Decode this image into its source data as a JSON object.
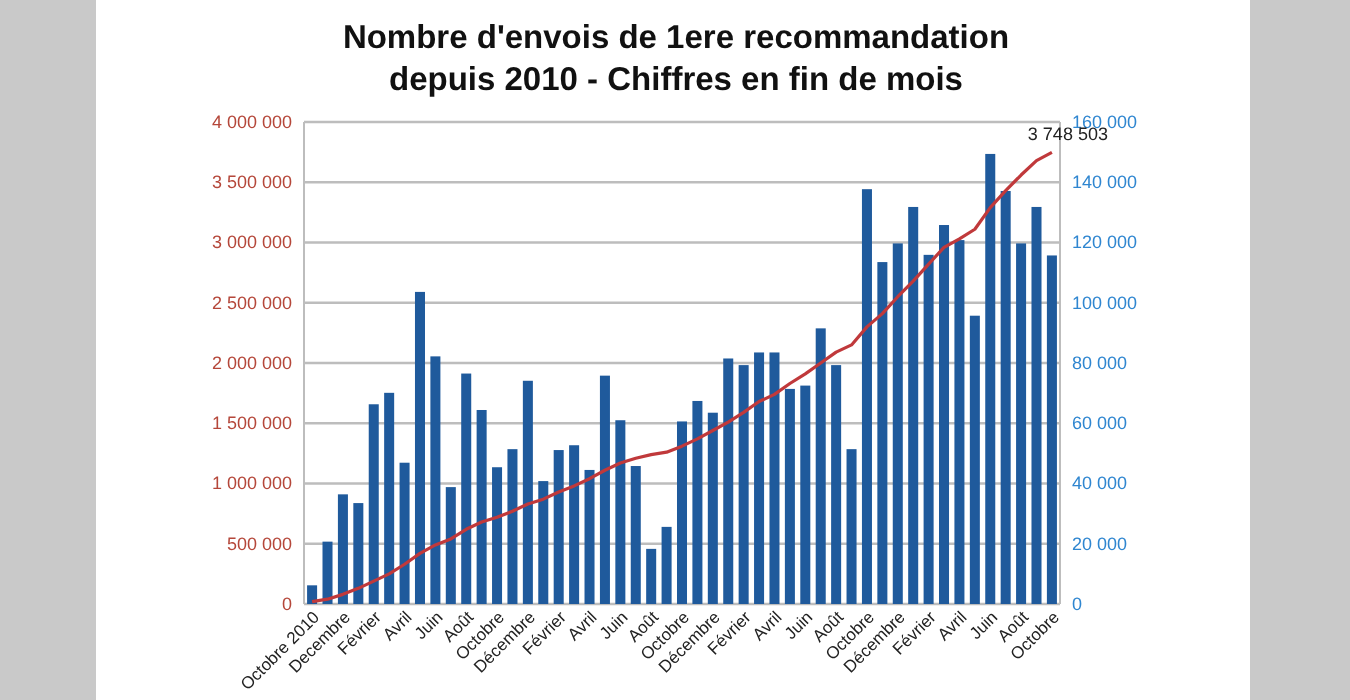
{
  "chart_data": {
    "type": "bar",
    "title": "Nombre d'envois de 1ere recommandation\ndepuis 2010 - Chiffres en fin de mois",
    "categories": [
      "Octobre 2010",
      null,
      "Decembre",
      null,
      "Février",
      null,
      "Avril",
      null,
      "Juin",
      null,
      "Août",
      null,
      "Octobre",
      null,
      "Décembre",
      null,
      "Février",
      null,
      "Avril",
      null,
      "Juin",
      null,
      "Août",
      null,
      "Octobre",
      null,
      "Décembre",
      null,
      "Février",
      null,
      "Avril",
      null,
      "Juin",
      null,
      "Août",
      null,
      "Octobre",
      null,
      "Décembre",
      null,
      "Février",
      null,
      "Avril",
      null,
      "Juin",
      null,
      "Août",
      null,
      "Octobre"
    ],
    "series": [
      {
        "axis": "y2",
        "color": "#1f5a9c",
        "values": [
          6200,
          20700,
          36400,
          33500,
          66300,
          70100,
          46900,
          103600,
          82200,
          38800,
          76500,
          64400,
          45400,
          51400,
          74100,
          40800,
          51100,
          52700,
          44500,
          75800,
          61000,
          45800,
          18300,
          25600,
          60600,
          67400,
          63500,
          81500,
          79300,
          83500,
          83500,
          71400,
          72500,
          91500,
          79300,
          51400,
          137700,
          113500,
          119700,
          131800,
          115900,
          125800,
          120800,
          95700,
          149400,
          137100,
          119700,
          131800,
          115700
        ]
      },
      {
        "type": "line",
        "axis": "y",
        "color": "#c0393b",
        "values": [
          20000,
          40000,
          80000,
          130000,
          190000,
          250000,
          330000,
          420000,
          490000,
          540000,
          620000,
          680000,
          720000,
          770000,
          830000,
          870000,
          930000,
          980000,
          1040000,
          1110000,
          1170000,
          1210000,
          1240000,
          1260000,
          1310000,
          1370000,
          1440000,
          1510000,
          1590000,
          1680000,
          1740000,
          1830000,
          1910000,
          2000000,
          2090000,
          2150000,
          2300000,
          2410000,
          2550000,
          2680000,
          2820000,
          2960000,
          3030000,
          3110000,
          3290000,
          3430000,
          3560000,
          3680000,
          3748503
        ],
        "value_labels": [
          null,
          null,
          null,
          null,
          null,
          null,
          null,
          null,
          null,
          null,
          null,
          null,
          null,
          null,
          null,
          null,
          null,
          null,
          null,
          null,
          null,
          null,
          null,
          null,
          null,
          null,
          null,
          null,
          null,
          null,
          null,
          null,
          null,
          null,
          null,
          null,
          null,
          null,
          null,
          null,
          null,
          null,
          null,
          null,
          null,
          null,
          null,
          null,
          "3 748 503"
        ]
      }
    ],
    "ylim": [
      0,
      4000000
    ],
    "yticks": [
      0,
      {
        "value": 500000,
        "label": "500 000"
      },
      {
        "value": 1000000,
        "label": "1 000 000"
      },
      {
        "value": 1500000,
        "label": "1 500 000"
      },
      {
        "value": 2000000,
        "label": "2 000 000"
      },
      {
        "value": 2500000,
        "label": "2 500 000"
      },
      {
        "value": 3000000,
        "label": "3 000 000"
      },
      {
        "value": 3500000,
        "label": "3 500 000"
      },
      {
        "value": 4000000,
        "label": "4 000 000"
      }
    ],
    "y2lim": [
      0,
      160000
    ],
    "y2ticks": [
      0,
      {
        "value": 20000,
        "label": "20 000"
      },
      {
        "value": 40000,
        "label": "40 000"
      },
      {
        "value": 60000,
        "label": "60 000"
      },
      {
        "value": 80000,
        "label": "80 000"
      },
      {
        "value": 100000,
        "label": "100 000"
      },
      {
        "value": 120000,
        "label": "120 000"
      },
      {
        "value": 140000,
        "label": "140 000"
      },
      {
        "value": 160000,
        "label": "160 000"
      }
    ],
    "grid": "y",
    "marker": "none"
  }
}
